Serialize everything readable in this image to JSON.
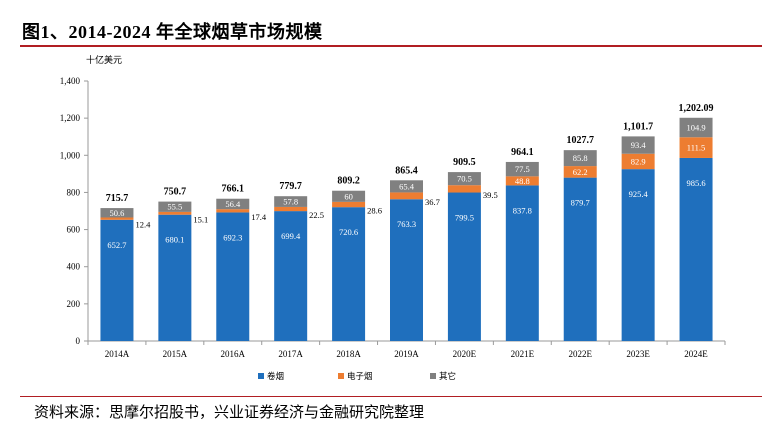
{
  "header": {
    "title": "图1、2014-2024 年全球烟草市场规模"
  },
  "footer": {
    "source": "资料来源：思摩尔招股书，兴业证券经济与金融研究院整理"
  },
  "chart_data": {
    "type": "bar",
    "stacked": true,
    "ylabel": "十亿美元",
    "ylim": [
      0,
      1400
    ],
    "yticks": [
      "0",
      "200",
      "400",
      "600",
      "800",
      "1,000",
      "1,200",
      "1,400"
    ],
    "categories": [
      "2014A",
      "2015A",
      "2016A",
      "2017A",
      "2018A",
      "2019A",
      "2020E",
      "2021E",
      "2022E",
      "2023E",
      "2024E"
    ],
    "series": [
      {
        "name": "卷烟",
        "color": "#1f6fbd",
        "values": [
          652.7,
          680.1,
          692.3,
          699.4,
          720.6,
          763.3,
          799.5,
          837.8,
          879.7,
          925.4,
          985.6
        ],
        "labels": [
          "652.7",
          "680.1",
          "692.3",
          "699.4",
          "720.6",
          "763.3",
          "799.5",
          "837.8",
          "879.7",
          "925.4",
          "985.6"
        ]
      },
      {
        "name": "电子烟",
        "color": "#ed7d31",
        "values": [
          12.4,
          15.1,
          17.4,
          22.5,
          28.6,
          36.7,
          39.5,
          48.8,
          62.2,
          82.9,
          111.5
        ],
        "labels": [
          "12.4",
          "15.1",
          "17.4",
          "22.5",
          "28.6",
          "36.7",
          "39.5",
          "48.8",
          "62.2",
          "82.9",
          "111.5"
        ]
      },
      {
        "name": "其它",
        "color": "#808080",
        "values": [
          50.6,
          55.5,
          56.4,
          57.8,
          60,
          65.4,
          70.5,
          77.5,
          85.8,
          93.4,
          104.9
        ],
        "labels": [
          "50.6",
          "55.5",
          "56.4",
          "57.8",
          "60",
          "65.4",
          "70.5",
          "77.5",
          "85.8",
          "93.4",
          "104.9"
        ]
      }
    ],
    "totals": [
      715.7,
      750.7,
      766.1,
      779.7,
      809.2,
      865.4,
      909.5,
      964.1,
      1027.7,
      1101.7,
      1202.09
    ],
    "total_labels": [
      "715.7",
      "750.7",
      "766.1",
      "779.7",
      "809.2",
      "865.4",
      "909.5",
      "964.1",
      "1027.7",
      "1,101.7",
      "1,202.09"
    ],
    "legend_position": "bottom",
    "grid": false
  }
}
